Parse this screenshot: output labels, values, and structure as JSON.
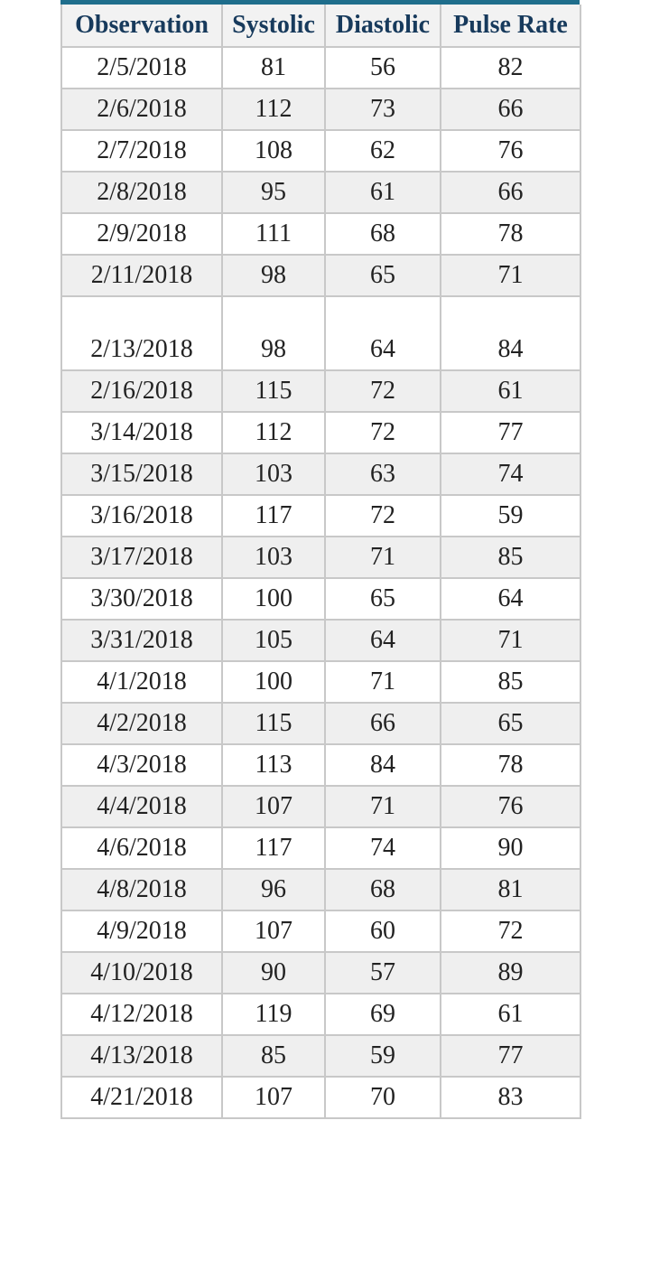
{
  "table": {
    "headers": [
      "Observation",
      "Systolic",
      "Diastolic",
      "Pulse Rate"
    ],
    "rows": [
      [
        "2/5/2018",
        "81",
        "56",
        "82"
      ],
      [
        "2/6/2018",
        "112",
        "73",
        "66"
      ],
      [
        "2/7/2018",
        "108",
        "62",
        "76"
      ],
      [
        "2/8/2018",
        "95",
        "61",
        "66"
      ],
      [
        "2/9/2018",
        "111",
        "68",
        "78"
      ],
      [
        "2/11/2018",
        "98",
        "65",
        "71"
      ],
      [
        "2/13/2018",
        "98",
        "64",
        "84"
      ],
      [
        "2/16/2018",
        "115",
        "72",
        "61"
      ],
      [
        "3/14/2018",
        "112",
        "72",
        "77"
      ],
      [
        "3/15/2018",
        "103",
        "63",
        "74"
      ],
      [
        "3/16/2018",
        "117",
        "72",
        "59"
      ],
      [
        "3/17/2018",
        "103",
        "71",
        "85"
      ],
      [
        "3/30/2018",
        "100",
        "65",
        "64"
      ],
      [
        "3/31/2018",
        "105",
        "64",
        "71"
      ],
      [
        "4/1/2018",
        "100",
        "71",
        "85"
      ],
      [
        "4/2/2018",
        "115",
        "66",
        "65"
      ],
      [
        "4/3/2018",
        "113",
        "84",
        "78"
      ],
      [
        "4/4/2018",
        "107",
        "71",
        "76"
      ],
      [
        "4/6/2018",
        "117",
        "74",
        "90"
      ],
      [
        "4/8/2018",
        "96",
        "68",
        "81"
      ],
      [
        "4/9/2018",
        "107",
        "60",
        "72"
      ],
      [
        "4/10/2018",
        "90",
        "57",
        "89"
      ],
      [
        "4/12/2018",
        "119",
        "69",
        "61"
      ],
      [
        "4/13/2018",
        "85",
        "59",
        "77"
      ],
      [
        "4/21/2018",
        "107",
        "70",
        "83"
      ]
    ]
  }
}
